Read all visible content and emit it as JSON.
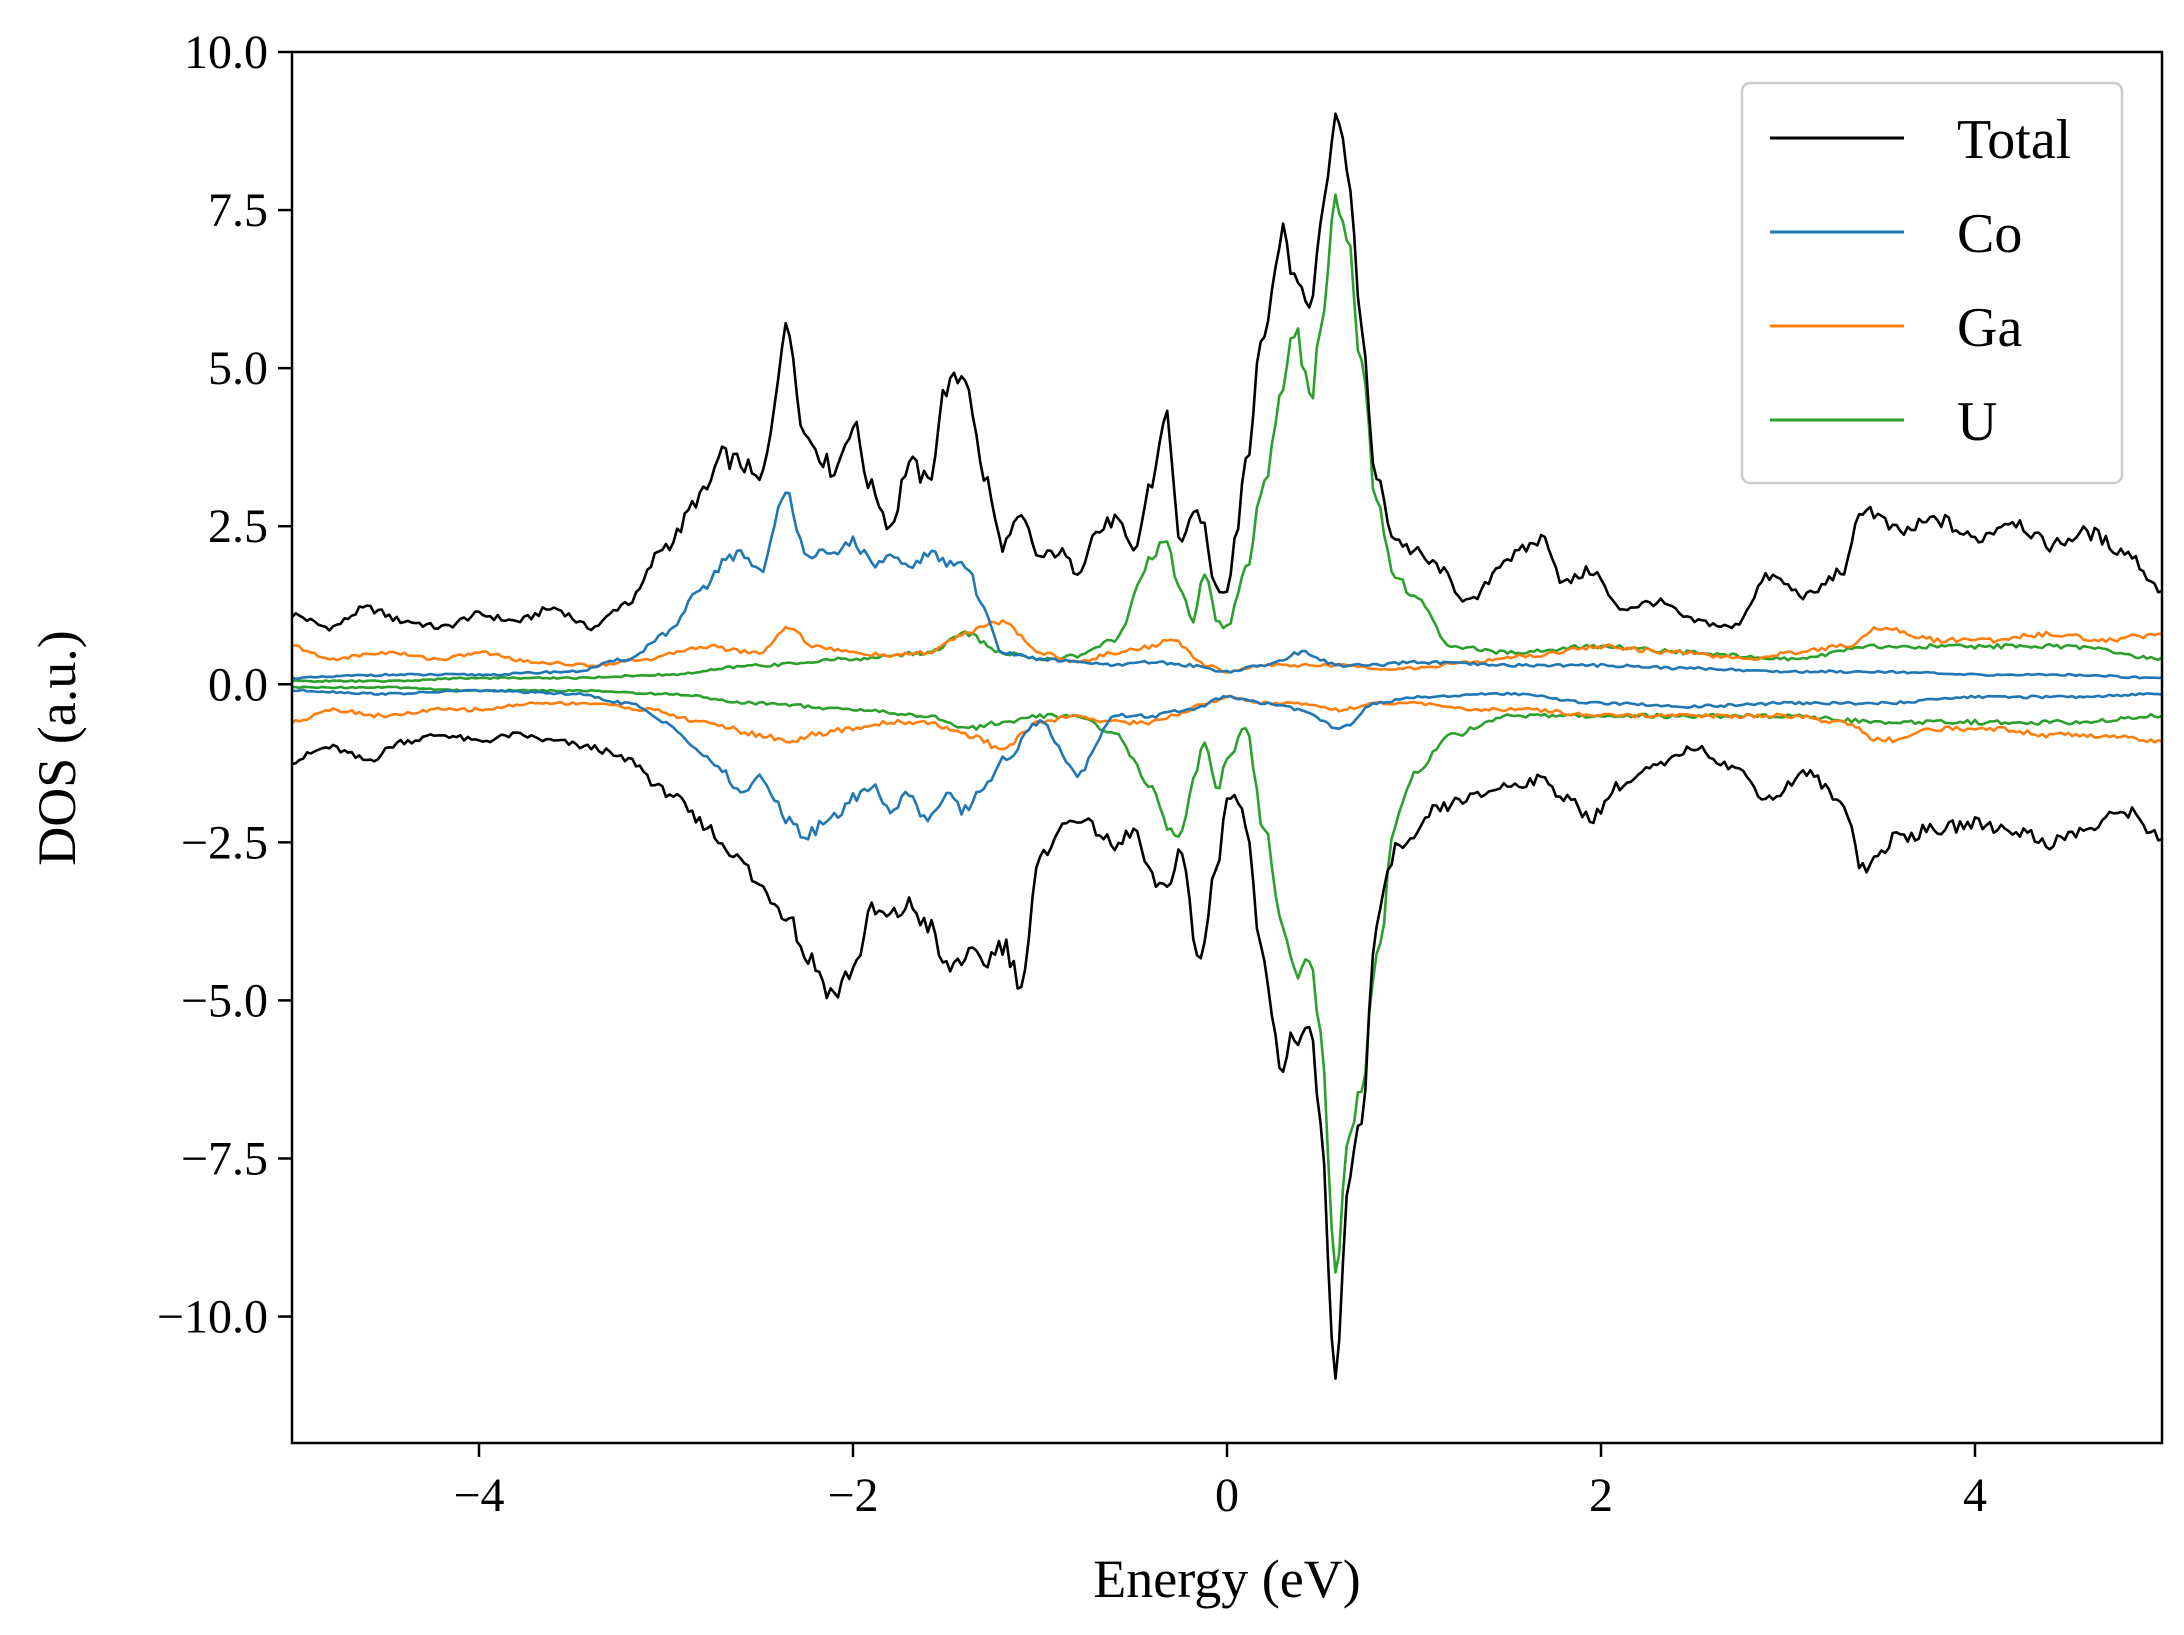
{
  "chart_data": {
    "type": "line",
    "title": "",
    "xlabel": "Energy (eV)",
    "ylabel": "DOS (a.u.)",
    "xlim": [
      -5,
      5
    ],
    "ylim": [
      -12.0,
      10.0
    ],
    "xticks": [
      -4,
      -2,
      0,
      2,
      4
    ],
    "xtick_labels": [
      "−4",
      "−2",
      "0",
      "2",
      "4"
    ],
    "yticks": [
      10.0,
      7.5,
      5.0,
      2.5,
      0.0,
      -2.5,
      -5.0,
      -7.5,
      -10.0
    ],
    "ytick_labels": [
      "10.0",
      "7.5",
      "5.0",
      "2.5",
      "0.0",
      "−2.5",
      "−5.0",
      "−7.5",
      "−10.0"
    ],
    "grid": false,
    "legend_position": "top-right",
    "series": [
      {
        "name": "Total",
        "color": "#000000",
        "x": [
          -5,
          -4.8,
          -4.6,
          -4.4,
          -4.2,
          -4.0,
          -3.8,
          -3.6,
          -3.4,
          -3.2,
          -3.0,
          -2.8,
          -2.7,
          -2.6,
          -2.5,
          -2.35,
          -2.25,
          -2.1,
          -2.0,
          -1.9,
          -1.8,
          -1.7,
          -1.6,
          -1.5,
          -1.4,
          -1.3,
          -1.2,
          -1.1,
          -1.0,
          -0.9,
          -0.8,
          -0.7,
          -0.6,
          -0.5,
          -0.4,
          -0.33,
          -0.25,
          -0.15,
          -0.05,
          0.0,
          0.05,
          0.1,
          0.2,
          0.3,
          0.35,
          0.45,
          0.5,
          0.58,
          0.65,
          0.72,
          0.8,
          0.9,
          1.0,
          1.1,
          1.3,
          1.5,
          1.7,
          1.8,
          1.95,
          2.1,
          2.3,
          2.5,
          2.7,
          2.9,
          3.1,
          3.3,
          3.4,
          3.6,
          3.8,
          4.0,
          4.2,
          4.4,
          4.6,
          4.8,
          5.0
        ],
        "up": [
          1.1,
          0.9,
          1.2,
          1.0,
          0.9,
          1.1,
          1.0,
          1.2,
          0.9,
          1.3,
          2.2,
          3.0,
          3.6,
          3.5,
          3.2,
          5.6,
          3.9,
          3.4,
          4.1,
          3.1,
          2.5,
          3.5,
          3.2,
          4.7,
          4.9,
          3.3,
          2.2,
          2.6,
          2.0,
          2.1,
          1.8,
          2.4,
          2.6,
          2.1,
          3.2,
          4.3,
          2.3,
          2.7,
          1.5,
          1.5,
          2.4,
          3.6,
          5.6,
          7.2,
          6.5,
          6.1,
          7.3,
          9.0,
          8.1,
          5.5,
          3.2,
          2.3,
          2.1,
          1.9,
          1.3,
          2.0,
          2.3,
          1.6,
          1.8,
          1.2,
          1.3,
          1.0,
          0.9,
          1.7,
          1.4,
          1.8,
          2.8,
          2.4,
          2.6,
          2.3,
          2.6,
          2.2,
          2.4,
          2.1,
          1.5
        ],
        "down": [
          -1.2,
          -1.0,
          -1.2,
          -0.9,
          -0.8,
          -0.9,
          -0.8,
          -0.9,
          -1.0,
          -1.2,
          -1.7,
          -2.2,
          -2.5,
          -2.8,
          -3.2,
          -3.6,
          -4.3,
          -4.9,
          -4.5,
          -3.6,
          -3.7,
          -3.5,
          -3.8,
          -4.5,
          -4.3,
          -4.4,
          -4.1,
          -4.7,
          -2.8,
          -2.3,
          -2.1,
          -2.3,
          -2.6,
          -2.3,
          -3.1,
          -3.3,
          -2.6,
          -4.4,
          -2.8,
          -1.8,
          -1.8,
          -2.2,
          -4.5,
          -6.1,
          -5.6,
          -5.6,
          -7.0,
          -11.1,
          -7.8,
          -6.8,
          -3.8,
          -2.6,
          -2.5,
          -2.0,
          -1.8,
          -1.6,
          -1.5,
          -1.8,
          -2.1,
          -1.6,
          -1.3,
          -1.0,
          -1.3,
          -1.8,
          -1.4,
          -1.9,
          -2.9,
          -2.4,
          -2.3,
          -2.2,
          -2.3,
          -2.5,
          -2.3,
          -2.0,
          -2.4
        ]
      },
      {
        "name": "Co",
        "color": "#1f77b4",
        "x": [
          -5,
          -4.5,
          -4.0,
          -3.5,
          -3.2,
          -3.0,
          -2.8,
          -2.7,
          -2.6,
          -2.5,
          -2.35,
          -2.25,
          -2.1,
          -2.0,
          -1.9,
          -1.8,
          -1.7,
          -1.6,
          -1.5,
          -1.4,
          -1.3,
          -1.2,
          -1.0,
          -0.8,
          -0.6,
          -0.4,
          -0.2,
          0.0,
          0.2,
          0.4,
          0.6,
          0.8,
          1.0,
          1.5,
          2.0,
          2.5,
          3.0,
          3.5,
          4.0,
          4.5,
          5.0
        ],
        "up": [
          0.1,
          0.15,
          0.15,
          0.2,
          0.4,
          0.8,
          1.5,
          1.9,
          2.1,
          1.8,
          3.0,
          2.1,
          2.0,
          2.3,
          1.9,
          2.0,
          1.8,
          2.1,
          1.9,
          1.9,
          1.2,
          0.5,
          0.4,
          0.35,
          0.3,
          0.35,
          0.3,
          0.2,
          0.3,
          0.5,
          0.3,
          0.3,
          0.35,
          0.3,
          0.3,
          0.25,
          0.2,
          0.2,
          0.15,
          0.15,
          0.1
        ],
        "down": [
          -0.1,
          -0.15,
          -0.1,
          -0.15,
          -0.3,
          -0.6,
          -1.1,
          -1.4,
          -1.7,
          -1.5,
          -2.1,
          -2.4,
          -2.1,
          -1.8,
          -1.6,
          -2.0,
          -1.7,
          -2.2,
          -1.7,
          -2.0,
          -1.6,
          -1.2,
          -0.6,
          -1.4,
          -0.5,
          -0.5,
          -0.4,
          -0.2,
          -0.3,
          -0.4,
          -0.7,
          -0.3,
          -0.2,
          -0.15,
          -0.3,
          -0.35,
          -0.3,
          -0.3,
          -0.2,
          -0.2,
          -0.15
        ]
      },
      {
        "name": "Ga",
        "color": "#ff7f0e",
        "x": [
          -5,
          -4.8,
          -4.5,
          -4.2,
          -4.0,
          -3.7,
          -3.4,
          -3.1,
          -2.8,
          -2.5,
          -2.35,
          -2.2,
          -2.0,
          -1.8,
          -1.6,
          -1.4,
          -1.2,
          -1.0,
          -0.8,
          -0.6,
          -0.4,
          -0.3,
          -0.1,
          0.0,
          0.2,
          0.4,
          0.6,
          0.8,
          1.0,
          1.3,
          1.6,
          2.0,
          2.4,
          2.8,
          3.0,
          3.3,
          3.5,
          3.8,
          4.1,
          4.4,
          4.7,
          5.0
        ],
        "up": [
          0.6,
          0.4,
          0.5,
          0.4,
          0.5,
          0.35,
          0.3,
          0.4,
          0.6,
          0.5,
          0.9,
          0.6,
          0.5,
          0.45,
          0.5,
          0.8,
          1.0,
          0.5,
          0.35,
          0.5,
          0.6,
          0.7,
          0.3,
          0.2,
          0.3,
          0.3,
          0.3,
          0.25,
          0.25,
          0.35,
          0.45,
          0.6,
          0.5,
          0.4,
          0.5,
          0.6,
          0.9,
          0.7,
          0.7,
          0.8,
          0.7,
          0.8
        ],
        "down": [
          -0.6,
          -0.4,
          -0.5,
          -0.4,
          -0.4,
          -0.3,
          -0.3,
          -0.4,
          -0.6,
          -0.8,
          -0.9,
          -0.8,
          -0.7,
          -0.6,
          -0.6,
          -0.8,
          -1.0,
          -0.6,
          -0.5,
          -0.6,
          -0.6,
          -0.5,
          -0.3,
          -0.2,
          -0.3,
          -0.3,
          -0.4,
          -0.3,
          -0.3,
          -0.4,
          -0.4,
          -0.5,
          -0.5,
          -0.5,
          -0.5,
          -0.6,
          -0.9,
          -0.7,
          -0.7,
          -0.8,
          -0.8,
          -0.9
        ]
      },
      {
        "name": "U",
        "color": "#2ca02c",
        "x": [
          -5,
          -4.5,
          -4.0,
          -3.5,
          -3.0,
          -2.5,
          -2.0,
          -1.6,
          -1.4,
          -1.2,
          -1.0,
          -0.8,
          -0.6,
          -0.4,
          -0.33,
          -0.25,
          -0.18,
          -0.12,
          -0.05,
          0.0,
          0.1,
          0.2,
          0.3,
          0.36,
          0.45,
          0.5,
          0.58,
          0.65,
          0.72,
          0.8,
          0.9,
          1.0,
          1.2,
          1.5,
          2.0,
          2.5,
          3.0,
          3.5,
          4.0,
          4.5,
          5.0
        ],
        "up": [
          0.05,
          0.05,
          0.1,
          0.1,
          0.15,
          0.3,
          0.4,
          0.5,
          0.8,
          0.5,
          0.4,
          0.45,
          0.7,
          2.0,
          2.3,
          1.5,
          1.0,
          1.8,
          1.0,
          0.9,
          1.8,
          3.2,
          4.8,
          5.6,
          4.5,
          5.5,
          7.8,
          6.9,
          5.0,
          2.8,
          1.7,
          1.4,
          0.6,
          0.5,
          0.6,
          0.5,
          0.4,
          0.6,
          0.6,
          0.6,
          0.4
        ],
        "down": [
          -0.05,
          -0.05,
          -0.1,
          -0.1,
          -0.15,
          -0.3,
          -0.4,
          -0.5,
          -0.7,
          -0.6,
          -0.5,
          -0.5,
          -0.8,
          -1.6,
          -2.2,
          -2.4,
          -1.5,
          -0.9,
          -1.7,
          -1.2,
          -0.7,
          -2.3,
          -3.7,
          -4.6,
          -4.3,
          -5.5,
          -9.3,
          -7.1,
          -6.3,
          -4.4,
          -2.2,
          -1.4,
          -0.8,
          -0.5,
          -0.5,
          -0.5,
          -0.5,
          -0.6,
          -0.6,
          -0.6,
          -0.5
        ]
      }
    ]
  }
}
